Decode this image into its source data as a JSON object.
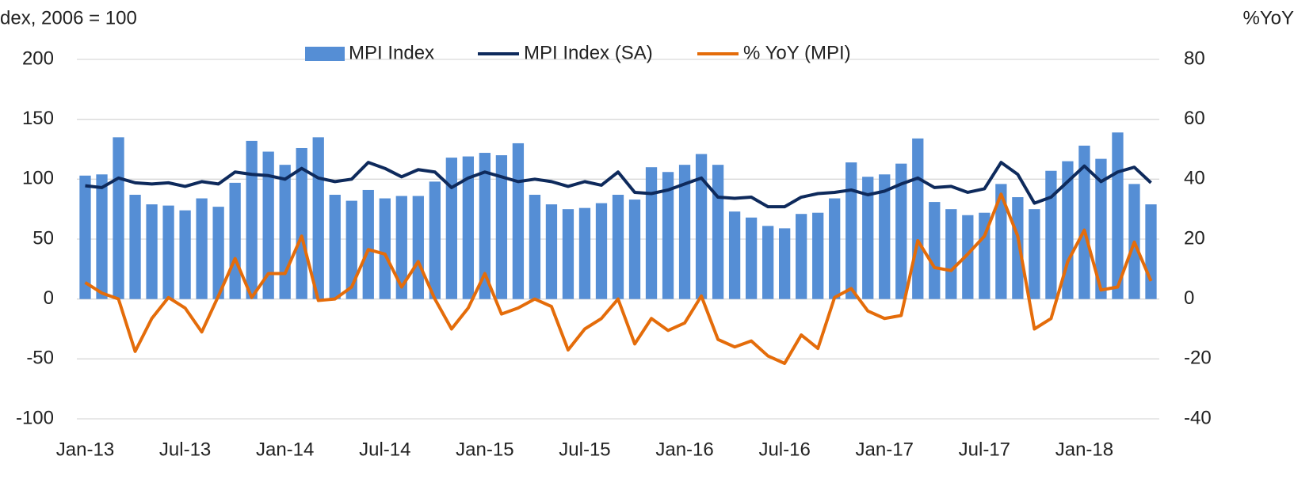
{
  "chart_data": {
    "type": "bar_line",
    "y_label": "dex, 2006 = 100",
    "y2_label": "%YoY",
    "categories": [
      "Jan-13",
      null,
      null,
      null,
      null,
      null,
      "Jul-13",
      null,
      null,
      null,
      null,
      null,
      "Jan-14",
      null,
      null,
      null,
      null,
      null,
      "Jul-14",
      null,
      null,
      null,
      null,
      null,
      "Jan-15",
      null,
      null,
      null,
      null,
      null,
      "Jul-15",
      null,
      null,
      null,
      null,
      null,
      "Jan-16",
      null,
      null,
      null,
      null,
      null,
      "Jul-16",
      null,
      null,
      null,
      null,
      null,
      "Jan-17",
      null,
      null,
      null,
      null,
      null,
      "Jul-17",
      null,
      null,
      null,
      null,
      null,
      "Jan-18",
      null,
      null,
      null,
      null
    ],
    "series": [
      {
        "name": "MPI Index",
        "kind": "bar",
        "color": "#558ed5",
        "values": [
          103,
          104,
          135,
          87,
          79,
          78,
          74,
          84,
          77,
          97,
          132,
          123,
          112,
          126,
          135,
          87,
          82,
          91,
          84,
          86,
          86,
          98,
          118,
          119,
          122,
          120,
          130,
          87,
          79,
          75,
          76,
          80,
          87,
          83,
          110,
          106,
          112,
          121,
          112,
          73,
          68,
          61,
          59,
          71,
          72,
          84,
          114,
          102,
          104,
          113,
          134,
          81,
          75,
          70,
          72,
          96,
          85,
          75,
          107,
          115,
          128,
          117,
          139,
          96,
          79
        ]
      },
      {
        "name": "MPI Index (SA)",
        "kind": "line",
        "color": "#0e2a5c",
        "values": [
          94.5,
          93,
          101,
          97,
          96,
          97,
          94,
          98,
          96,
          106,
          104,
          103,
          100,
          109,
          101,
          98,
          100,
          114,
          109,
          102,
          108,
          106,
          93,
          101,
          106,
          102,
          98,
          100,
          98,
          94,
          98,
          95,
          106,
          89,
          88,
          91,
          96,
          101,
          85,
          84,
          85,
          77,
          77,
          85,
          88,
          89,
          91,
          87,
          90,
          96,
          101,
          93,
          94,
          89,
          92,
          114,
          104,
          80,
          85,
          98,
          111,
          98,
          106,
          110,
          97
        ]
      },
      {
        "name": "% YoY (MPI)",
        "kind": "line",
        "axis": "y2",
        "color": "#e46c0a",
        "values": [
          5.5,
          2,
          0,
          -17.5,
          -6.5,
          0.5,
          -3,
          -11,
          1,
          13.5,
          0.5,
          8.5,
          8.5,
          21,
          -0.5,
          0,
          4,
          16.5,
          15,
          4,
          12.5,
          0,
          -10,
          -3,
          8.5,
          -5,
          -3,
          0,
          -2.5,
          -17,
          -10,
          -6.5,
          0,
          -15,
          -6.5,
          -10.5,
          -8,
          1,
          -13.5,
          -16,
          -14,
          -19,
          -21.5,
          -12,
          -16.5,
          0.5,
          3.5,
          -4,
          -6.5,
          -5.5,
          19.5,
          10.5,
          9.5,
          15,
          21,
          35,
          21,
          -10,
          -6.5,
          12.5,
          23,
          3,
          4,
          19,
          6
        ]
      }
    ],
    "ylim": [
      -100,
      200
    ],
    "yticks": [
      -100,
      -50,
      0,
      50,
      100,
      150,
      200
    ],
    "y2lim": [
      -40,
      80
    ],
    "y2ticks": [
      -40,
      -20,
      0,
      20,
      40,
      60,
      80
    ],
    "grid": true,
    "legend": "top"
  }
}
